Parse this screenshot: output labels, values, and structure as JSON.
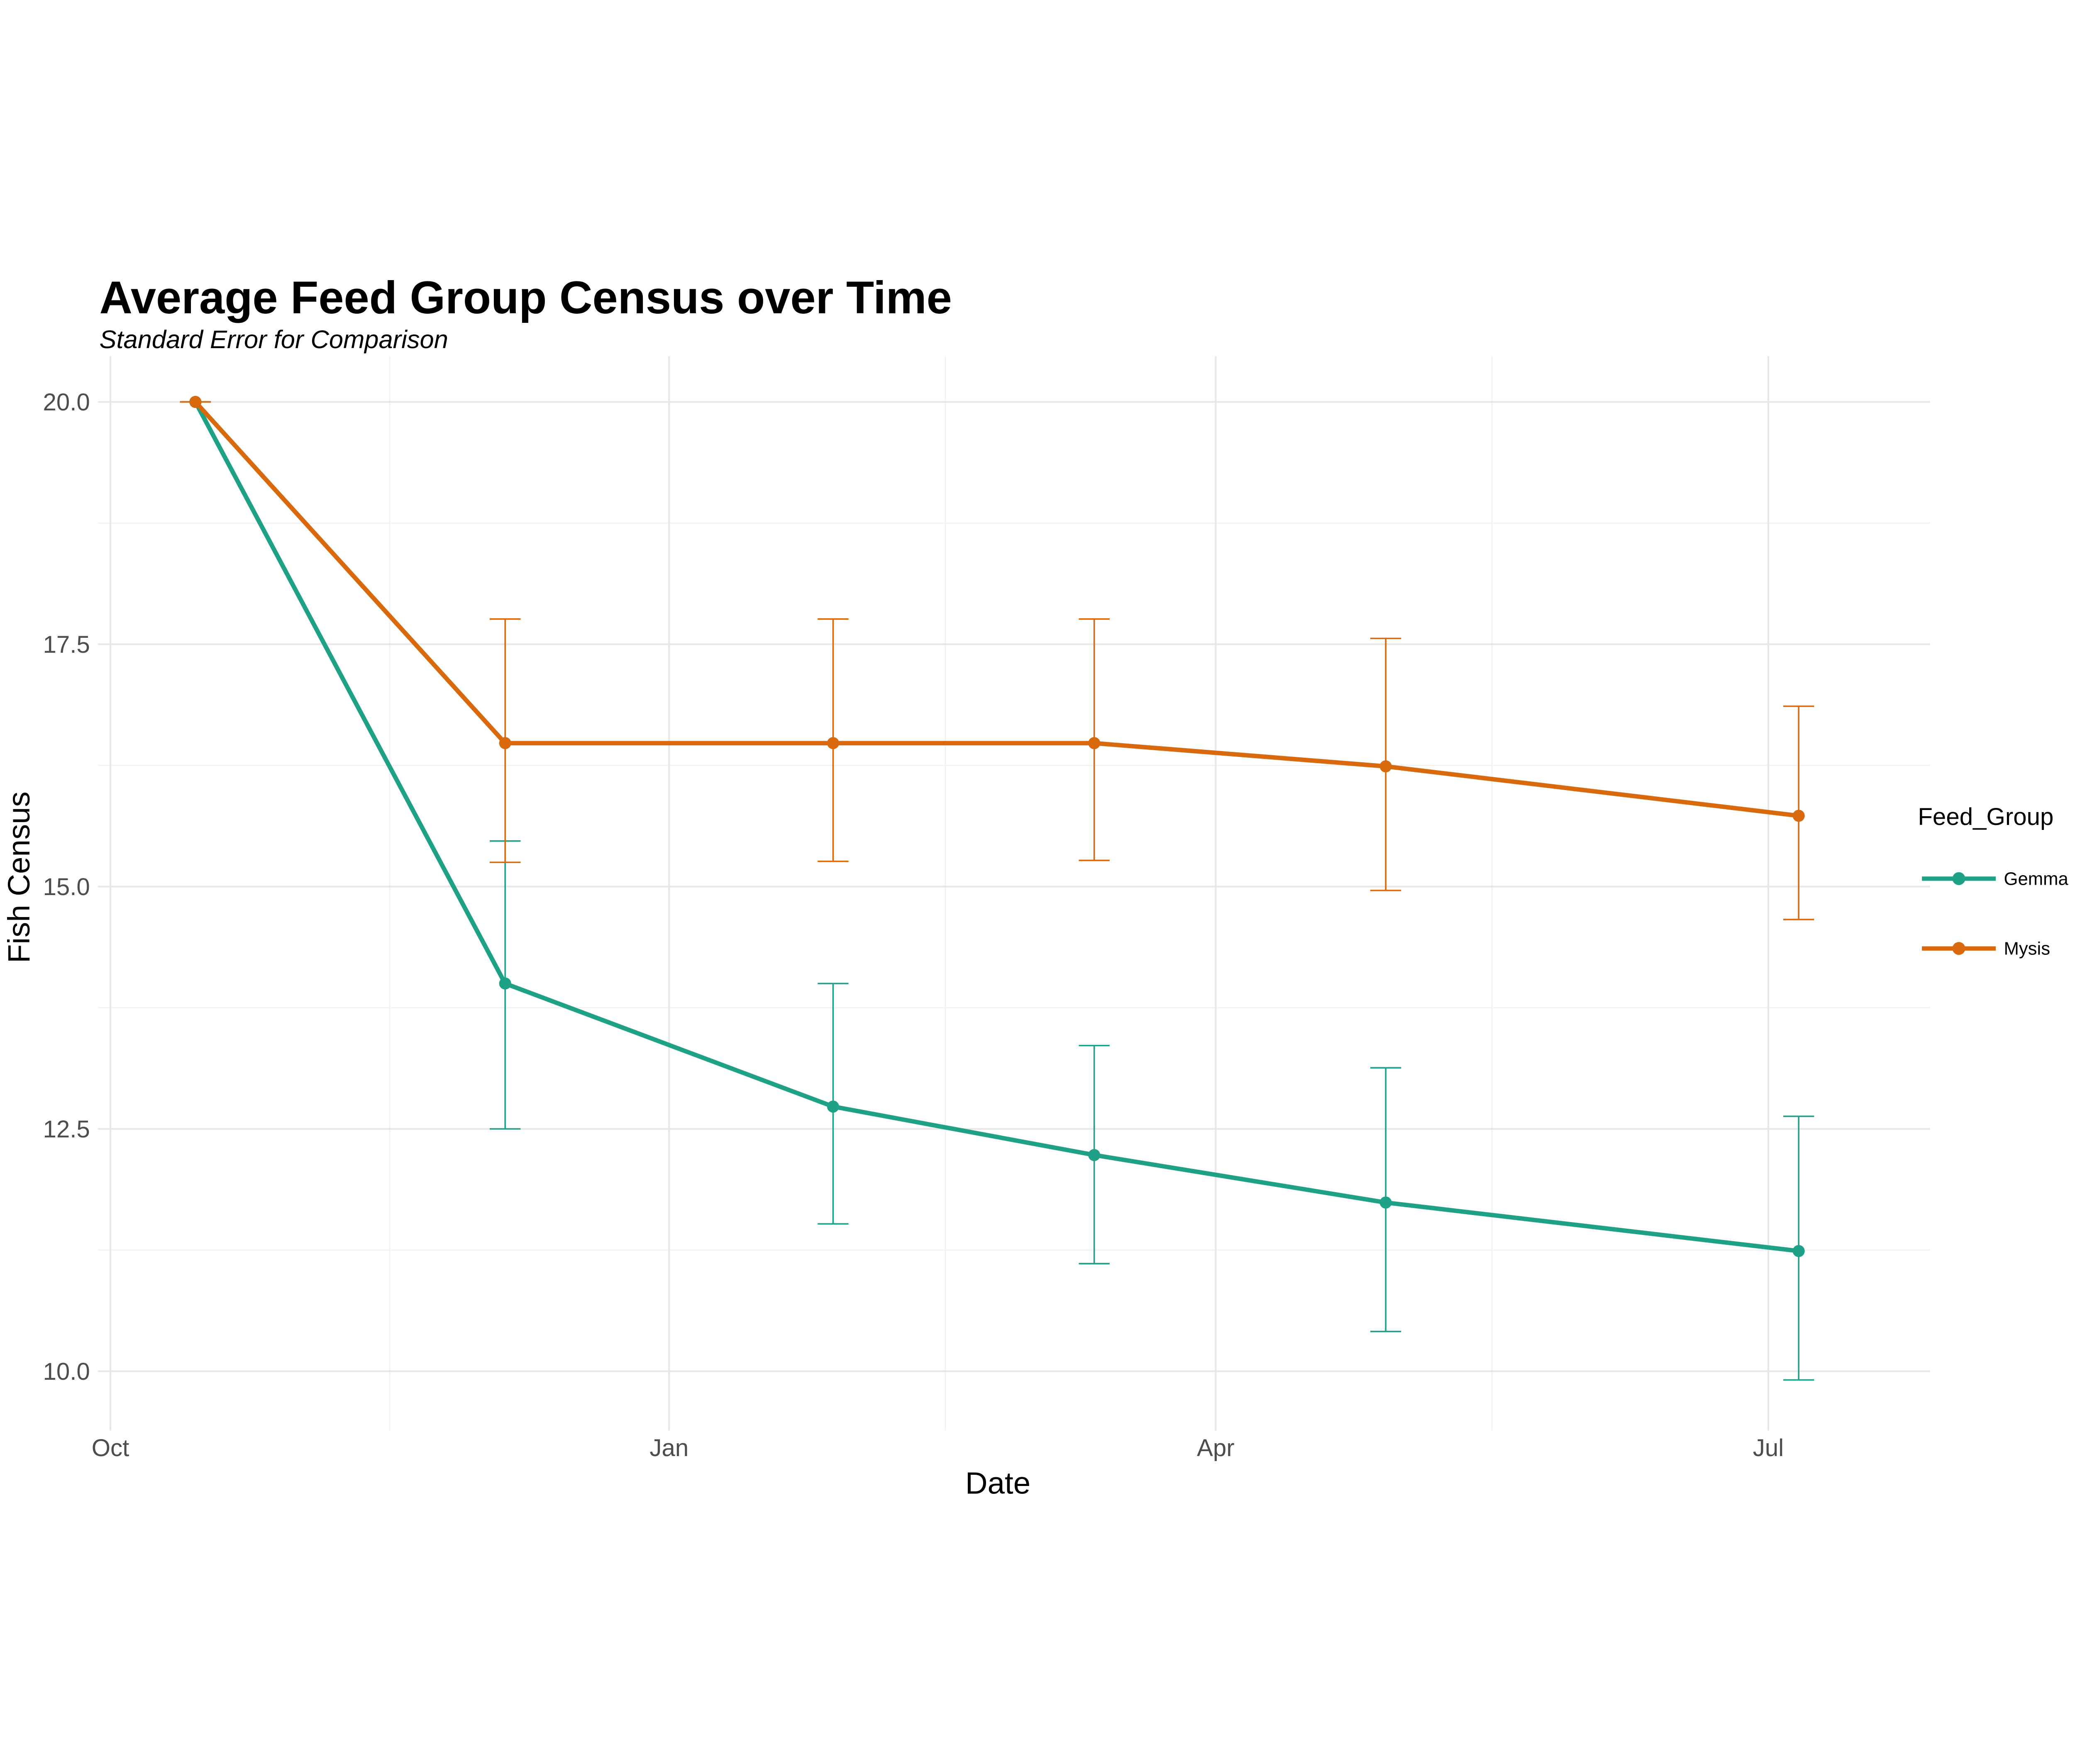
{
  "header": {
    "title": "Average Feed Group Census over Time",
    "subtitle": "Standard Error for Comparison"
  },
  "axes": {
    "x_label": "Date",
    "y_label": "Fish Census",
    "x_tick_labels": [
      "Oct",
      "Jan",
      "Apr",
      "Jul"
    ],
    "y_tick_labels": [
      "10.0",
      "12.5",
      "15.0",
      "17.5",
      "20.0"
    ]
  },
  "legend": {
    "title": "Feed_Group",
    "entries": [
      {
        "label": "Gemma",
        "color": "#1FA187"
      },
      {
        "label": "Mysis",
        "color": "#D8690D"
      }
    ]
  },
  "colors": {
    "gemma": "#1FA187",
    "mysis": "#D8690D",
    "grid_major": "#E7E7E7",
    "grid_minor": "#F2F2F2",
    "tick_text": "#4D4D4D"
  },
  "chart_data": {
    "type": "line",
    "title": "Average Feed Group Census over Time",
    "subtitle": "Standard Error for Comparison",
    "xlabel": "Date",
    "ylabel": "Fish Census",
    "legend_title": "Feed_Group",
    "legend_position": "right",
    "grid": "major+minor",
    "error_bars": "standard_error",
    "x_axis": {
      "tick_labels": [
        "Oct",
        "Jan",
        "Apr",
        "Jul"
      ],
      "tick_days_from_oct1": [
        0,
        92,
        182,
        273
      ],
      "minor_grid_days_from_oct1": [
        46,
        137.5,
        227.5
      ]
    },
    "y_axis": {
      "ticks": [
        10.0,
        12.5,
        15.0,
        17.5,
        20.0
      ],
      "minor_gridlines": [
        11.25,
        13.75,
        16.25,
        18.75
      ],
      "range": [
        9.4,
        20.5
      ]
    },
    "series": [
      {
        "name": "Gemma",
        "color": "#1FA187",
        "points": [
          {
            "day_from_oct1": 14,
            "value": 20.0,
            "err_low": 20.0,
            "err_high": 20.0
          },
          {
            "day_from_oct1": 65,
            "value": 14.0,
            "err_low": 12.5,
            "err_high": 15.47
          },
          {
            "day_from_oct1": 119,
            "value": 12.73,
            "err_low": 11.52,
            "err_high": 14.0
          },
          {
            "day_from_oct1": 162,
            "value": 12.23,
            "err_low": 11.11,
            "err_high": 13.36
          },
          {
            "day_from_oct1": 210,
            "value": 11.74,
            "err_low": 10.41,
            "err_high": 13.13
          },
          {
            "day_from_oct1": 278,
            "value": 11.24,
            "err_low": 9.91,
            "err_high": 12.63
          }
        ]
      },
      {
        "name": "Mysis",
        "color": "#D8690D",
        "points": [
          {
            "day_from_oct1": 14,
            "value": 20.0,
            "err_low": 20.0,
            "err_high": 20.0
          },
          {
            "day_from_oct1": 65,
            "value": 16.48,
            "err_low": 15.25,
            "err_high": 17.76
          },
          {
            "day_from_oct1": 119,
            "value": 16.48,
            "err_low": 15.26,
            "err_high": 17.76
          },
          {
            "day_from_oct1": 162,
            "value": 16.48,
            "err_low": 15.27,
            "err_high": 17.76
          },
          {
            "day_from_oct1": 210,
            "value": 16.24,
            "err_low": 14.96,
            "err_high": 17.56
          },
          {
            "day_from_oct1": 278,
            "value": 15.73,
            "err_low": 14.66,
            "err_high": 16.86
          }
        ]
      }
    ]
  }
}
